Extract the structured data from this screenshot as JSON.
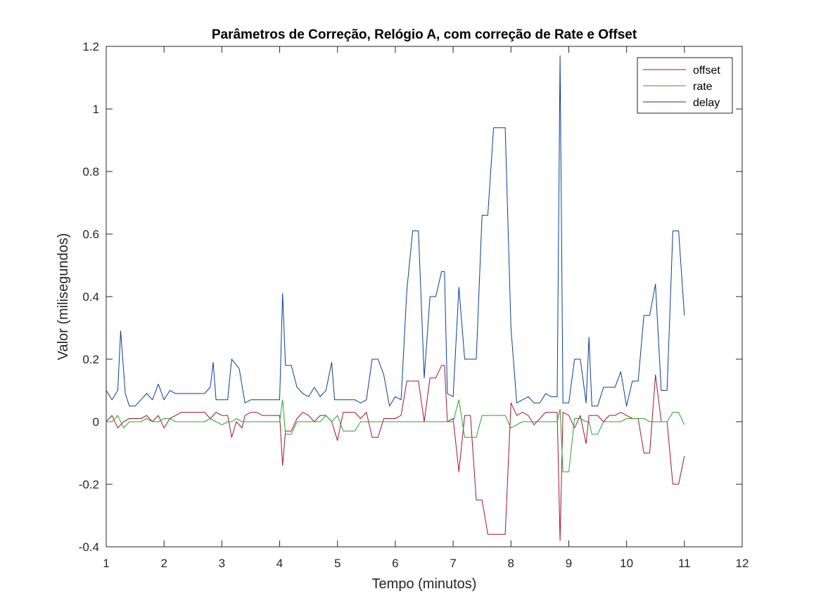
{
  "chart_data": {
    "type": "line",
    "title": "Parâmetros de Correção, Relógio A, com correção de Rate e Offset",
    "xlabel": "Tempo (minutos)",
    "ylabel": "Valor (milisegundos)",
    "xlim": [
      1,
      12
    ],
    "ylim": [
      -0.4,
      1.2
    ],
    "xticks": [
      "1",
      "2",
      "3",
      "4",
      "5",
      "6",
      "7",
      "8",
      "9",
      "10",
      "11",
      "12"
    ],
    "yticks": [
      "-0.4",
      "-0.2",
      "0",
      "0.2",
      "0.4",
      "0.6",
      "0.8",
      "1",
      "1.2"
    ],
    "grid": false,
    "legend_position": "top-right",
    "series": [
      {
        "name": "offset",
        "color": "#a2142f",
        "x": [
          1.0,
          1.1,
          1.2,
          1.3,
          1.4,
          1.5,
          1.6,
          1.7,
          1.8,
          1.9,
          2.0,
          2.1,
          2.2,
          2.3,
          2.4,
          2.5,
          2.6,
          2.7,
          2.8,
          2.9,
          3.0,
          3.1,
          3.17,
          3.25,
          3.35,
          3.4,
          3.5,
          3.6,
          3.7,
          3.8,
          3.9,
          4.0,
          4.05,
          4.1,
          4.2,
          4.3,
          4.4,
          4.5,
          4.6,
          4.7,
          4.8,
          4.9,
          5.0,
          5.1,
          5.2,
          5.3,
          5.4,
          5.5,
          5.6,
          5.7,
          5.8,
          5.9,
          6.0,
          6.1,
          6.2,
          6.3,
          6.4,
          6.5,
          6.6,
          6.7,
          6.8,
          6.85,
          6.9,
          7.0,
          7.1,
          7.2,
          7.3,
          7.4,
          7.5,
          7.6,
          7.7,
          7.8,
          7.9,
          8.0,
          8.1,
          8.2,
          8.3,
          8.4,
          8.5,
          8.6,
          8.7,
          8.8,
          8.85,
          8.9,
          9.0,
          9.1,
          9.2,
          9.3,
          9.35,
          9.4,
          9.5,
          9.6,
          9.7,
          9.8,
          9.9,
          10.0,
          10.1,
          10.2,
          10.3,
          10.4,
          10.5,
          10.6,
          10.7,
          10.8,
          10.9,
          11.0
        ],
        "values": [
          0.0,
          0.02,
          -0.02,
          0.0,
          0.01,
          0.01,
          0.01,
          0.02,
          0.0,
          0.02,
          -0.02,
          0.01,
          0.02,
          0.03,
          0.03,
          0.03,
          0.03,
          0.03,
          0.01,
          0.03,
          0.02,
          0.02,
          -0.05,
          0.0,
          -0.02,
          0.02,
          0.03,
          0.03,
          0.02,
          0.02,
          0.02,
          0.02,
          -0.14,
          -0.03,
          -0.03,
          0.01,
          0.03,
          0.02,
          0.0,
          0.02,
          0.02,
          0.0,
          -0.06,
          0.03,
          0.03,
          0.03,
          0.01,
          0.03,
          -0.05,
          -0.05,
          0.01,
          0.01,
          0.01,
          0.02,
          0.13,
          0.13,
          0.13,
          0.0,
          0.14,
          0.14,
          0.18,
          0.18,
          0.0,
          0.01,
          -0.16,
          0.02,
          0.02,
          -0.25,
          -0.25,
          -0.36,
          -0.36,
          -0.36,
          -0.36,
          0.06,
          0.02,
          0.03,
          0.02,
          -0.01,
          0.01,
          0.03,
          0.03,
          0.03,
          -0.38,
          0.03,
          0.02,
          -0.02,
          0.02,
          -0.07,
          0.02,
          0.02,
          0.02,
          0.0,
          0.02,
          0.02,
          0.03,
          0.02,
          0.01,
          0.01,
          -0.1,
          -0.1,
          0.15,
          0.0,
          0.0,
          -0.2,
          -0.2,
          -0.11
        ]
      },
      {
        "name": "rate",
        "color": "#2ca02c",
        "x": [
          1.0,
          1.1,
          1.2,
          1.3,
          1.4,
          1.5,
          1.6,
          1.7,
          1.8,
          1.9,
          2.0,
          2.1,
          2.2,
          2.3,
          2.4,
          2.5,
          2.6,
          2.7,
          2.8,
          2.9,
          3.0,
          3.1,
          3.17,
          3.25,
          3.35,
          3.4,
          3.5,
          3.6,
          3.7,
          3.8,
          3.9,
          4.0,
          4.05,
          4.1,
          4.2,
          4.3,
          4.4,
          4.5,
          4.6,
          4.7,
          4.8,
          4.9,
          5.0,
          5.1,
          5.2,
          5.3,
          5.4,
          5.5,
          5.6,
          5.7,
          5.8,
          5.9,
          6.0,
          6.1,
          6.2,
          6.3,
          6.4,
          6.5,
          6.6,
          6.7,
          6.8,
          6.85,
          6.9,
          7.0,
          7.1,
          7.2,
          7.3,
          7.4,
          7.5,
          7.6,
          7.7,
          7.8,
          7.9,
          8.0,
          8.1,
          8.2,
          8.3,
          8.4,
          8.5,
          8.6,
          8.7,
          8.8,
          8.85,
          8.9,
          9.0,
          9.1,
          9.2,
          9.3,
          9.35,
          9.4,
          9.5,
          9.6,
          9.7,
          9.8,
          9.9,
          10.0,
          10.1,
          10.2,
          10.3,
          10.4,
          10.5,
          10.6,
          10.7,
          10.8,
          10.9,
          11.0
        ],
        "values": [
          0.0,
          0.0,
          0.02,
          -0.02,
          0.0,
          0.0,
          0.0,
          0.01,
          0.0,
          0.0,
          0.01,
          0.01,
          0.0,
          0.0,
          0.0,
          0.0,
          0.0,
          0.0,
          0.01,
          0.0,
          -0.01,
          0.0,
          0.0,
          0.01,
          0.0,
          0.0,
          0.0,
          0.0,
          0.0,
          0.0,
          0.0,
          0.0,
          0.07,
          -0.04,
          -0.04,
          0.0,
          0.0,
          0.0,
          0.0,
          0.0,
          0.02,
          0.0,
          0.02,
          -0.03,
          -0.03,
          -0.03,
          0.0,
          0.0,
          0.0,
          0.0,
          0.0,
          0.0,
          0.0,
          0.0,
          0.0,
          0.0,
          0.0,
          0.0,
          0.0,
          0.0,
          0.0,
          0.0,
          0.0,
          0.0,
          0.07,
          -0.05,
          -0.05,
          -0.05,
          0.02,
          0.02,
          0.02,
          0.02,
          0.02,
          -0.02,
          -0.01,
          0.0,
          0.0,
          0.0,
          0.0,
          0.0,
          0.0,
          0.0,
          0.04,
          -0.16,
          -0.16,
          0.01,
          0.01,
          0.0,
          0.0,
          -0.04,
          -0.04,
          0.0,
          0.0,
          0.0,
          0.0,
          0.01,
          0.01,
          0.01,
          0.01,
          0.0,
          0.0,
          0.0,
          0.0,
          0.03,
          0.03,
          -0.01
        ]
      },
      {
        "name": "delay",
        "color": "#0b3d91",
        "x": [
          1.0,
          1.1,
          1.2,
          1.25,
          1.33,
          1.4,
          1.5,
          1.6,
          1.7,
          1.8,
          1.9,
          2.0,
          2.1,
          2.2,
          2.3,
          2.4,
          2.5,
          2.6,
          2.7,
          2.8,
          2.85,
          2.9,
          3.0,
          3.1,
          3.17,
          3.3,
          3.4,
          3.5,
          3.6,
          3.7,
          3.8,
          3.9,
          4.0,
          4.05,
          4.1,
          4.2,
          4.3,
          4.4,
          4.5,
          4.6,
          4.7,
          4.8,
          4.9,
          4.95,
          5.0,
          5.1,
          5.2,
          5.3,
          5.4,
          5.5,
          5.6,
          5.7,
          5.8,
          5.9,
          6.0,
          6.1,
          6.2,
          6.3,
          6.4,
          6.5,
          6.6,
          6.7,
          6.8,
          6.85,
          6.9,
          7.0,
          7.1,
          7.2,
          7.3,
          7.4,
          7.5,
          7.6,
          7.7,
          7.8,
          7.9,
          8.0,
          8.1,
          8.2,
          8.3,
          8.4,
          8.5,
          8.6,
          8.7,
          8.8,
          8.85,
          8.9,
          9.0,
          9.1,
          9.2,
          9.3,
          9.35,
          9.4,
          9.5,
          9.6,
          9.7,
          9.8,
          9.9,
          10.0,
          10.1,
          10.2,
          10.3,
          10.4,
          10.5,
          10.6,
          10.7,
          10.8,
          10.9,
          11.0
        ],
        "values": [
          0.1,
          0.07,
          0.1,
          0.29,
          0.09,
          0.05,
          0.05,
          0.07,
          0.09,
          0.07,
          0.12,
          0.07,
          0.1,
          0.09,
          0.09,
          0.09,
          0.09,
          0.09,
          0.09,
          0.11,
          0.19,
          0.07,
          0.07,
          0.07,
          0.2,
          0.17,
          0.06,
          0.07,
          0.07,
          0.07,
          0.07,
          0.07,
          0.07,
          0.41,
          0.18,
          0.18,
          0.11,
          0.09,
          0.08,
          0.11,
          0.08,
          0.1,
          0.19,
          0.07,
          0.07,
          0.07,
          0.07,
          0.07,
          0.06,
          0.07,
          0.2,
          0.2,
          0.15,
          0.05,
          0.08,
          0.07,
          0.42,
          0.61,
          0.61,
          0.14,
          0.4,
          0.4,
          0.48,
          0.48,
          0.09,
          0.08,
          0.43,
          0.2,
          0.2,
          0.2,
          0.66,
          0.66,
          0.94,
          0.94,
          0.94,
          0.3,
          0.06,
          0.07,
          0.08,
          0.06,
          0.06,
          0.09,
          0.08,
          0.08,
          1.17,
          0.06,
          0.06,
          0.2,
          0.2,
          0.06,
          0.27,
          0.05,
          0.05,
          0.11,
          0.11,
          0.11,
          0.16,
          0.05,
          0.13,
          0.13,
          0.34,
          0.34,
          0.44,
          0.1,
          0.1,
          0.61,
          0.61,
          0.34
        ]
      }
    ]
  }
}
